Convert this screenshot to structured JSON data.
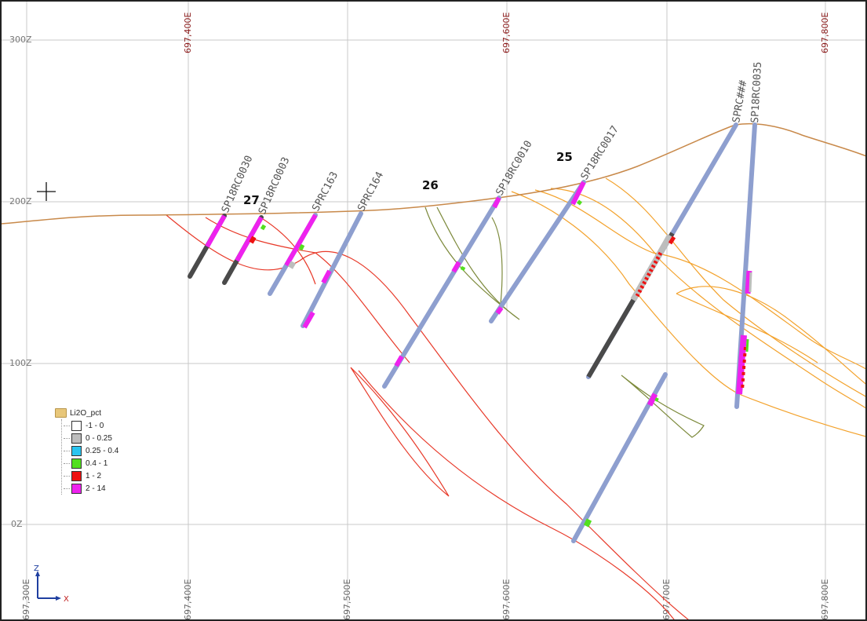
{
  "grid": {
    "eastings_top": [
      "697,400E",
      "697,600E",
      "697,800E"
    ],
    "eastings_bottom": [
      "697,300E",
      "697,400E",
      "697,500E",
      "697,600E",
      "697,700E",
      "697,800E"
    ],
    "elevations": [
      "300Z",
      "200Z",
      "100Z",
      "0Z"
    ]
  },
  "holes": [
    "SP18RC0030",
    "SP18RC0003",
    "SPRC163",
    "SPRC164",
    "SP18RC0010",
    "SP18RC0017",
    "SPRC###",
    "SP18RC0035"
  ],
  "section_numbers": [
    "27",
    "26",
    "25"
  ],
  "legend": {
    "title": "Li2O_pct",
    "items": [
      {
        "label": "-1 - 0",
        "color": "#ffffff"
      },
      {
        "label": "0 - 0.25",
        "color": "#bdbdbd"
      },
      {
        "label": "0.25 - 0.4",
        "color": "#29c4f0"
      },
      {
        "label": "0.4 - 1",
        "color": "#52e01e"
      },
      {
        "label": "1 - 2",
        "color": "#ee1111"
      },
      {
        "label": "2 - 14",
        "color": "#ee22ee"
      }
    ]
  },
  "axes": {
    "z": "Z",
    "x": "X"
  },
  "colors": {
    "topography": "#c8894a",
    "pegmatite_red": "#e83a2a",
    "pegmatite_orange": "#f3a22c",
    "pegmatite_green": "#7d8a3c",
    "hole_blue": "#8e9fcf",
    "hole_gray": "#4a4a4a"
  }
}
